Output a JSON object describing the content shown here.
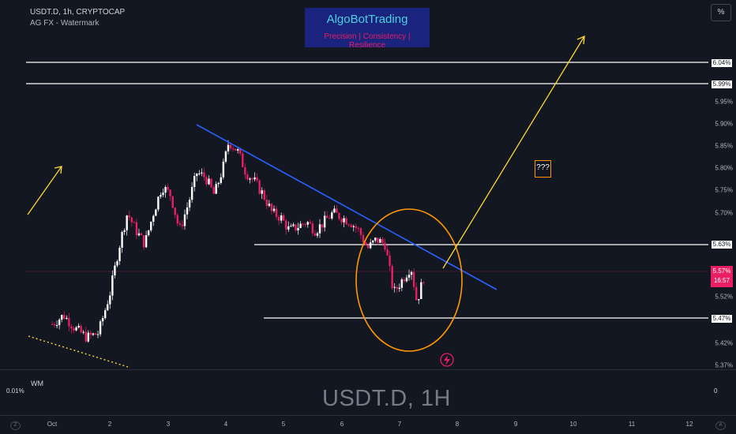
{
  "header": {
    "symbol_line": "USDT.D, 1h, CRYPTOCAP",
    "indicator_line": "AG FX - Watermark"
  },
  "brand": {
    "title": "AlgoBotTrading",
    "subtitle": "Precision  | Consistency | Resilience"
  },
  "toolbar": {
    "percent_button": "%"
  },
  "price_axis": {
    "ticks": [
      "5.95%",
      "5.90%",
      "5.85%",
      "5.80%",
      "5.75%",
      "5.70%",
      "5.52%",
      "5.42%",
      "5.37%"
    ],
    "level_labels": [
      "6.04%",
      "5.99%",
      "5.63%",
      "5.47%"
    ],
    "current_price": "5.57%",
    "countdown": "16:57"
  },
  "annotation": {
    "question_box": "???"
  },
  "bottom_pane": {
    "label": "WM",
    "left_value": "0.01%",
    "right_value": "0",
    "watermark": "USDT.D, 1H"
  },
  "time_axis": {
    "labels": [
      "Oct",
      "2",
      "3",
      "4",
      "5",
      "6",
      "7",
      "8",
      "9",
      "10",
      "11",
      "12"
    ],
    "left_icon": "Z",
    "right_icon": "A"
  },
  "colors": {
    "background": "#131722",
    "bull": "#ffffff",
    "bear": "#e91e63",
    "trendline": "#2962ff",
    "arrow": "#fdd835",
    "circle": "#ff9800",
    "level_line": "#ffffff",
    "brand_bg": "#1a237e",
    "brand_title": "#4dd0e1",
    "brand_sub": "#e91e63"
  },
  "chart_data": {
    "type": "candlestick",
    "symbol": "USDT.D",
    "timeframe": "1h",
    "ylim": [
      5.37,
      6.07
    ],
    "horizontal_levels": [
      6.04,
      5.99,
      5.63,
      5.47
    ],
    "current_price": 5.57,
    "close_path": [
      [
        0,
        5.45
      ],
      [
        0.2,
        5.47
      ],
      [
        0.4,
        5.44
      ],
      [
        0.6,
        5.42
      ],
      [
        0.8,
        5.43
      ],
      [
        1.0,
        5.52
      ],
      [
        1.15,
        5.62
      ],
      [
        1.3,
        5.7
      ],
      [
        1.45,
        5.66
      ],
      [
        1.6,
        5.63
      ],
      [
        1.75,
        5.7
      ],
      [
        1.9,
        5.76
      ],
      [
        2.05,
        5.74
      ],
      [
        2.2,
        5.66
      ],
      [
        2.35,
        5.72
      ],
      [
        2.5,
        5.79
      ],
      [
        2.65,
        5.78
      ],
      [
        2.8,
        5.74
      ],
      [
        2.95,
        5.8
      ],
      [
        3.05,
        5.86
      ],
      [
        3.2,
        5.84
      ],
      [
        3.35,
        5.79
      ],
      [
        3.5,
        5.77
      ],
      [
        3.65,
        5.74
      ],
      [
        3.8,
        5.7
      ],
      [
        3.95,
        5.69
      ],
      [
        4.1,
        5.66
      ],
      [
        4.25,
        5.67
      ],
      [
        4.4,
        5.68
      ],
      [
        4.55,
        5.66
      ],
      [
        4.7,
        5.68
      ],
      [
        4.85,
        5.7
      ],
      [
        5.0,
        5.69
      ],
      [
        5.15,
        5.68
      ],
      [
        5.3,
        5.66
      ],
      [
        5.45,
        5.62
      ],
      [
        5.6,
        5.64
      ],
      [
        5.75,
        5.63
      ],
      [
        5.9,
        5.52
      ],
      [
        6.05,
        5.55
      ],
      [
        6.2,
        5.58
      ],
      [
        6.3,
        5.5
      ],
      [
        6.45,
        5.57
      ]
    ]
  }
}
